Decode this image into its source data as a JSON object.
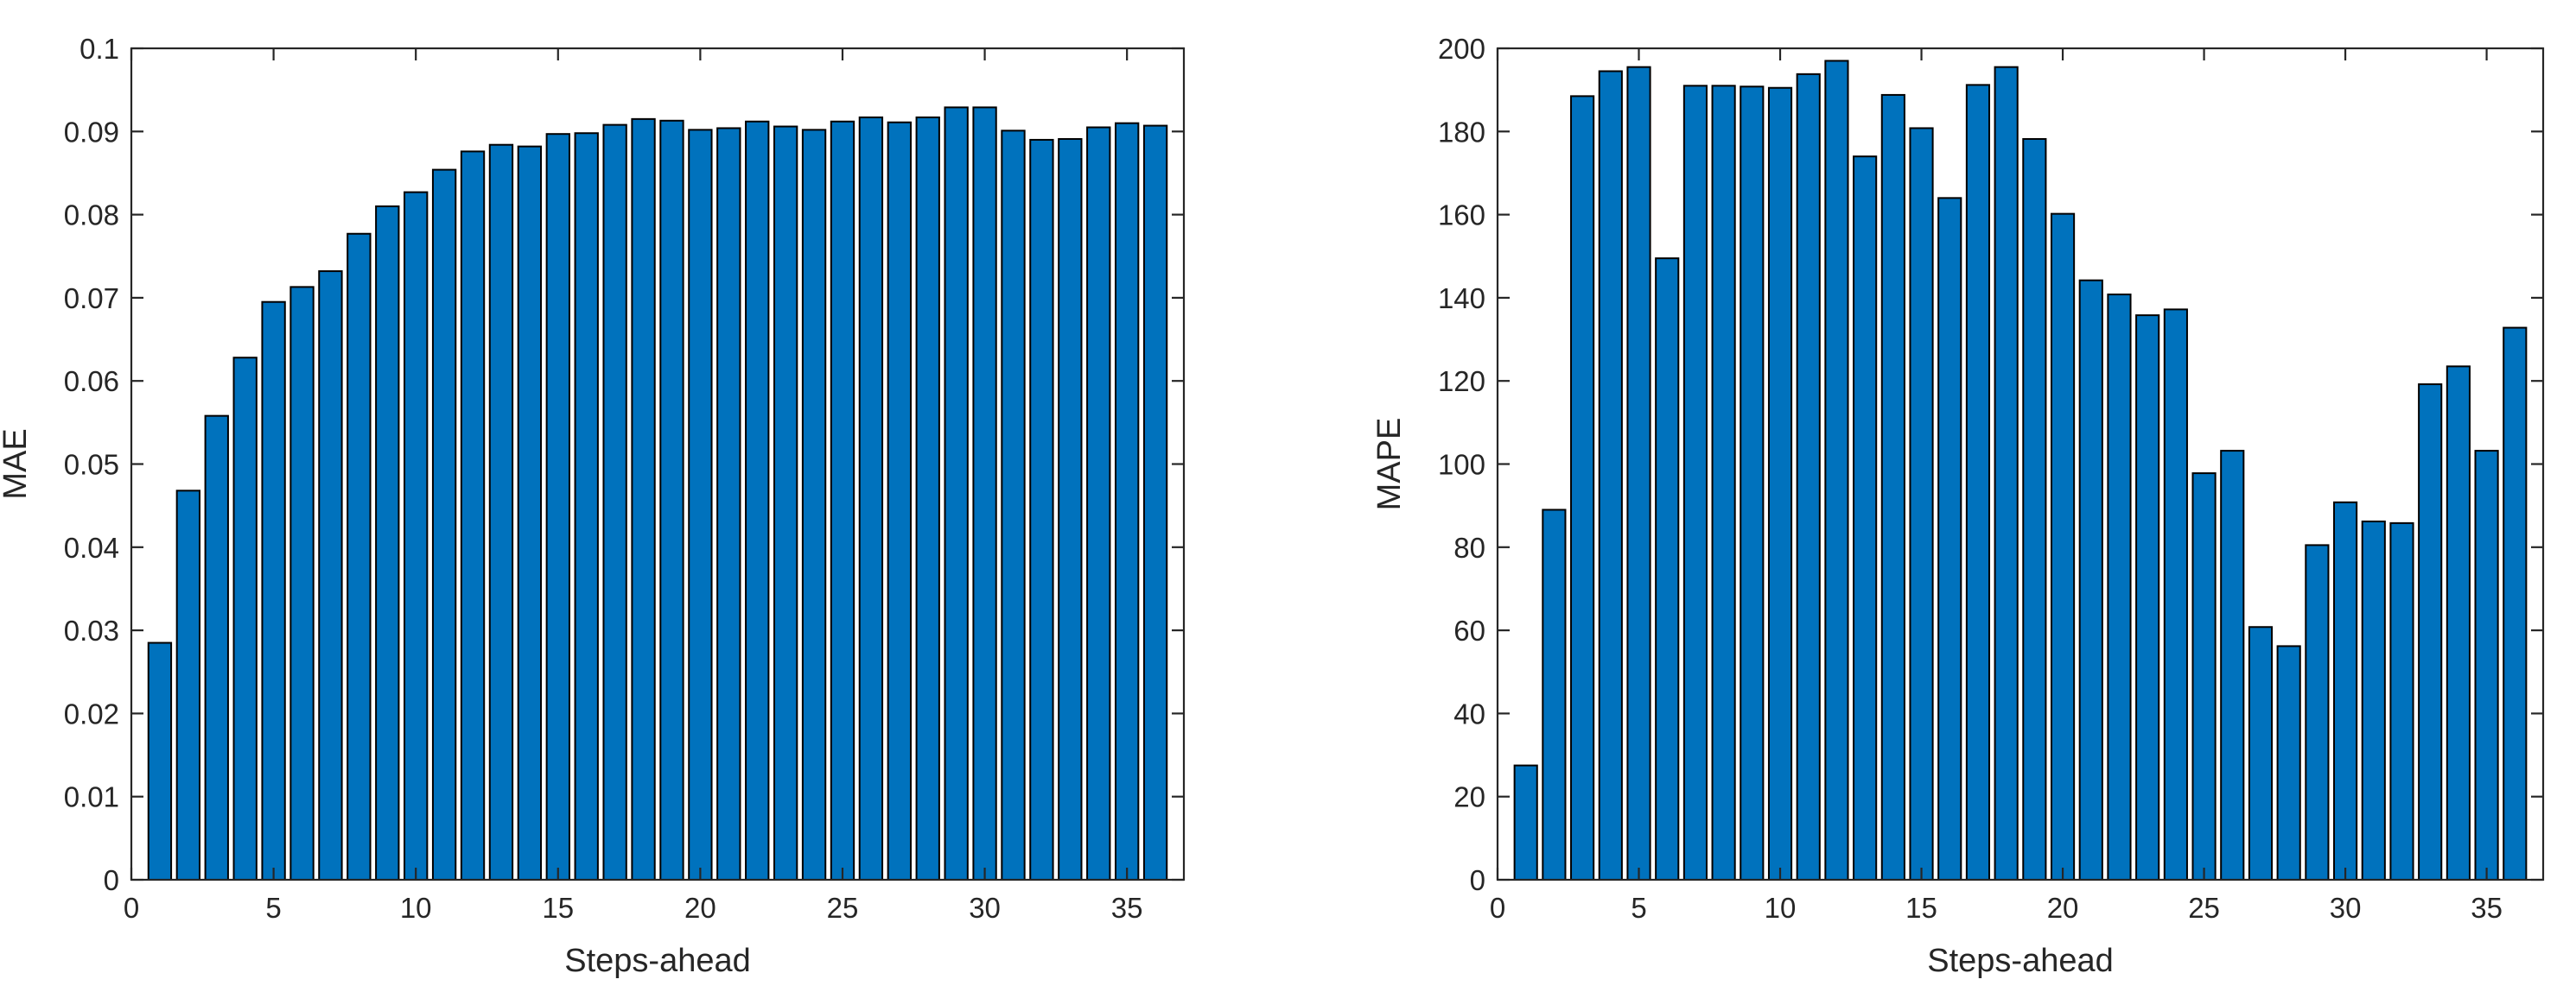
{
  "figure": {
    "colors": {
      "bar": "#0072BD",
      "bar_edge": "#000000",
      "axis": "#262626",
      "background": "#ffffff"
    }
  },
  "chart_data": [
    {
      "type": "bar",
      "xlabel": "Steps-ahead",
      "ylabel": "MAE",
      "xlim": [
        0,
        37
      ],
      "ylim": [
        0,
        0.1
      ],
      "xticks": [
        0,
        5,
        10,
        15,
        20,
        25,
        30,
        35
      ],
      "xtick_labels": [
        "0",
        "5",
        "10",
        "15",
        "20",
        "25",
        "30",
        "35"
      ],
      "yticks": [
        0,
        0.01,
        0.02,
        0.03,
        0.04,
        0.05,
        0.06,
        0.07,
        0.08,
        0.09,
        0.1
      ],
      "ytick_labels": [
        "0",
        "0.01",
        "0.02",
        "0.03",
        "0.04",
        "0.05",
        "0.06",
        "0.07",
        "0.08",
        "0.09",
        "0.1"
      ],
      "grid": false,
      "x": [
        1,
        2,
        3,
        4,
        5,
        6,
        7,
        8,
        9,
        10,
        11,
        12,
        13,
        14,
        15,
        16,
        17,
        18,
        19,
        20,
        21,
        22,
        23,
        24,
        25,
        26,
        27,
        28,
        29,
        30,
        31,
        32,
        33,
        34,
        35,
        36
      ],
      "values": [
        0.0285,
        0.0468,
        0.0558,
        0.0628,
        0.0695,
        0.0713,
        0.0732,
        0.0777,
        0.081,
        0.0827,
        0.0854,
        0.0876,
        0.0884,
        0.0882,
        0.0897,
        0.0898,
        0.0908,
        0.0915,
        0.0913,
        0.0902,
        0.0904,
        0.0912,
        0.0906,
        0.0902,
        0.0912,
        0.0917,
        0.0911,
        0.0917,
        0.0929,
        0.0929,
        0.0901,
        0.089,
        0.0891,
        0.0905,
        0.091,
        0.0907
      ]
    },
    {
      "type": "bar",
      "xlabel": "Steps-ahead",
      "ylabel": "MAPE",
      "xlim": [
        0,
        37
      ],
      "ylim": [
        0,
        200
      ],
      "xticks": [
        0,
        5,
        10,
        15,
        20,
        25,
        30,
        35
      ],
      "xtick_labels": [
        "0",
        "5",
        "10",
        "15",
        "20",
        "25",
        "30",
        "35"
      ],
      "yticks": [
        0,
        20,
        40,
        60,
        80,
        100,
        120,
        140,
        160,
        180,
        200
      ],
      "ytick_labels": [
        "0",
        "20",
        "40",
        "60",
        "80",
        "100",
        "120",
        "140",
        "160",
        "180",
        "200"
      ],
      "grid": false,
      "x": [
        1,
        2,
        3,
        4,
        5,
        6,
        7,
        8,
        9,
        10,
        11,
        12,
        13,
        14,
        15,
        16,
        17,
        18,
        19,
        20,
        21,
        22,
        23,
        24,
        25,
        26,
        27,
        28,
        29,
        30,
        31,
        32,
        33,
        34,
        35,
        36
      ],
      "values": [
        27.5,
        89.0,
        188.5,
        194.5,
        195.5,
        149.5,
        191.0,
        191.0,
        190.8,
        190.5,
        193.8,
        197.0,
        174.0,
        188.8,
        180.8,
        164.0,
        191.2,
        195.5,
        178.2,
        160.2,
        144.2,
        140.8,
        135.8,
        137.2,
        97.8,
        103.2,
        60.8,
        56.2,
        80.5,
        90.8,
        86.2,
        85.8,
        119.2,
        123.5,
        103.2,
        132.8
      ]
    }
  ]
}
